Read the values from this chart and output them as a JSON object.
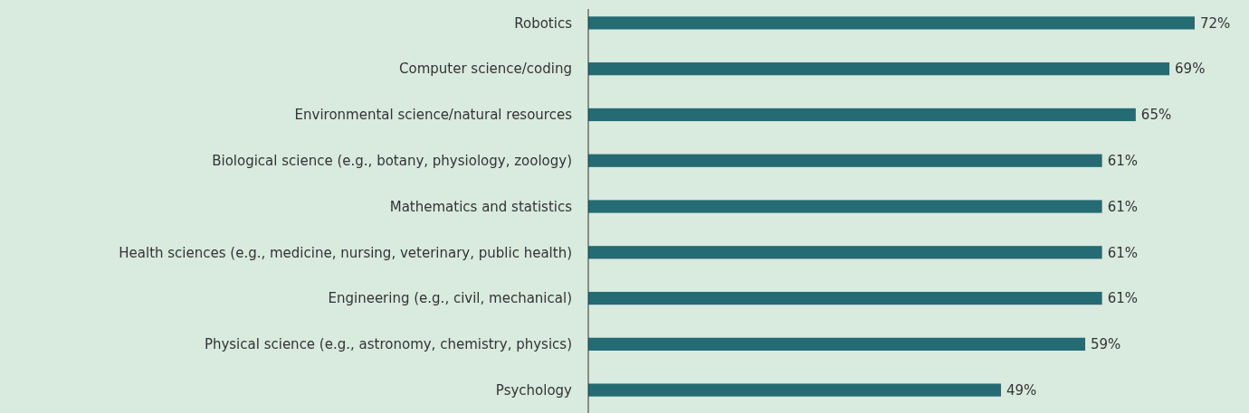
{
  "chart_data": {
    "type": "bar",
    "orientation": "horizontal",
    "categories": [
      "Robotics",
      "Computer science/coding",
      "Environmental science/natural resources",
      "Biological science (e.g., botany, physiology, zoology)",
      "Mathematics and statistics",
      "Health sciences (e.g., medicine, nursing, veterinary, public health)",
      "Engineering (e.g., civil, mechanical)",
      "Physical science (e.g., astronomy, chemistry, physics)",
      "Psychology"
    ],
    "values": [
      72,
      69,
      65,
      61,
      61,
      61,
      61,
      59,
      49
    ],
    "value_labels": [
      "72%",
      "69%",
      "65%",
      "61%",
      "61%",
      "61%",
      "61%",
      "59%",
      "49%"
    ],
    "color": "#246b73"
  }
}
